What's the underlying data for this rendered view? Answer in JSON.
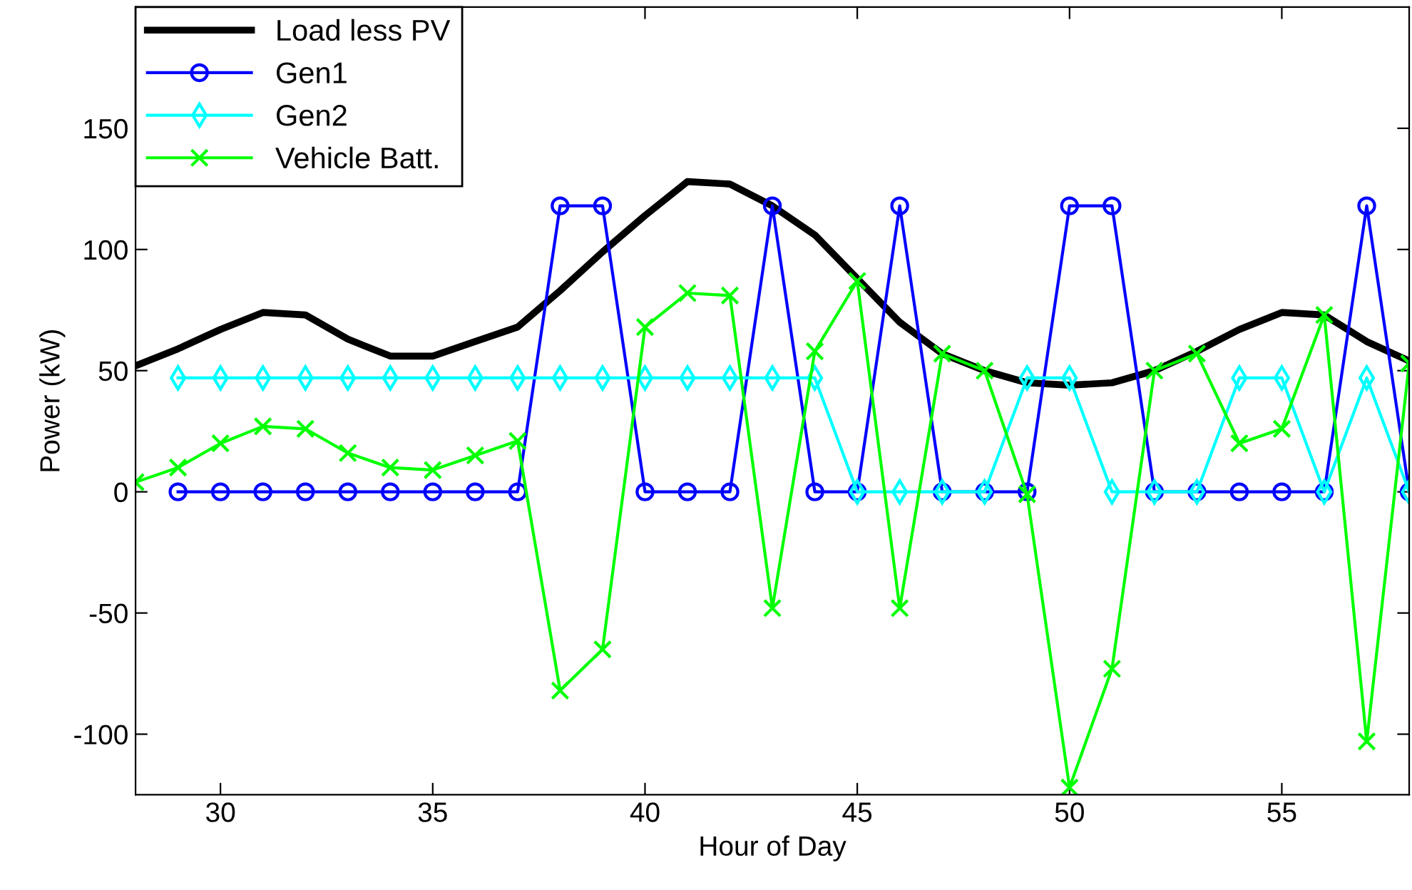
{
  "chart_data": {
    "type": "line",
    "xlabel": "Hour of Day",
    "ylabel": "Power (kW)",
    "xlim": [
      28,
      58
    ],
    "ylim": [
      -125,
      200
    ],
    "xticks": [
      30,
      35,
      40,
      45,
      50,
      55
    ],
    "yticks": [
      -100,
      -50,
      0,
      50,
      100,
      150
    ],
    "grid": false,
    "legend": "top left",
    "series": [
      {
        "name": "Load less PV",
        "color": "#000000",
        "marker": "none",
        "x": [
          28,
          29,
          30,
          31,
          32,
          33,
          34,
          35,
          36,
          37,
          38,
          39,
          40,
          41,
          42,
          43,
          44,
          45,
          46,
          47,
          48,
          49,
          50,
          51,
          52,
          53,
          54,
          55,
          56,
          57,
          58
        ],
        "values": [
          52,
          59,
          67,
          74,
          73,
          63,
          56,
          56,
          62,
          68,
          83,
          99,
          114,
          128,
          127,
          118,
          106,
          88,
          70,
          57,
          50,
          45,
          44,
          45,
          50,
          58,
          67,
          74,
          73,
          62,
          54
        ]
      },
      {
        "name": "Gen1",
        "color": "#0000ff",
        "marker": "circle",
        "x": [
          29,
          30,
          31,
          32,
          33,
          34,
          35,
          36,
          37,
          38,
          39,
          40,
          41,
          42,
          43,
          44,
          45,
          46,
          47,
          48,
          49,
          50,
          51,
          52,
          53,
          54,
          55,
          56,
          57,
          58
        ],
        "values": [
          0,
          0,
          0,
          0,
          0,
          0,
          0,
          0,
          0,
          118,
          118,
          0,
          0,
          0,
          118,
          0,
          0,
          118,
          0,
          0,
          0,
          118,
          118,
          0,
          0,
          0,
          0,
          0,
          118,
          0
        ]
      },
      {
        "name": "Gen2",
        "color": "#00ffff",
        "marker": "diamond",
        "x": [
          29,
          30,
          31,
          32,
          33,
          34,
          35,
          36,
          37,
          38,
          39,
          40,
          41,
          42,
          43,
          44,
          45,
          46,
          47,
          48,
          49,
          50,
          51,
          52,
          53,
          54,
          55,
          56,
          57,
          58
        ],
        "values": [
          47,
          47,
          47,
          47,
          47,
          47,
          47,
          47,
          47,
          47,
          47,
          47,
          47,
          47,
          47,
          47,
          0,
          0,
          0,
          0,
          47,
          47,
          0,
          0,
          0,
          47,
          47,
          0,
          47,
          0
        ]
      },
      {
        "name": "Vehicle Batt.",
        "color": "#00ff00",
        "marker": "cross",
        "x": [
          28,
          29,
          30,
          31,
          32,
          33,
          34,
          35,
          36,
          37,
          38,
          39,
          40,
          41,
          42,
          43,
          44,
          45,
          46,
          47,
          48,
          49,
          50,
          51,
          52,
          53,
          54,
          55,
          56,
          57,
          58
        ],
        "values": [
          4,
          10,
          20,
          27,
          26,
          16,
          10,
          9,
          15,
          21,
          -82,
          -65,
          68,
          82,
          81,
          -48,
          58,
          87,
          -48,
          57,
          50,
          -1,
          -122,
          -73,
          50,
          57,
          20,
          26,
          73,
          -103,
          53
        ]
      }
    ]
  }
}
